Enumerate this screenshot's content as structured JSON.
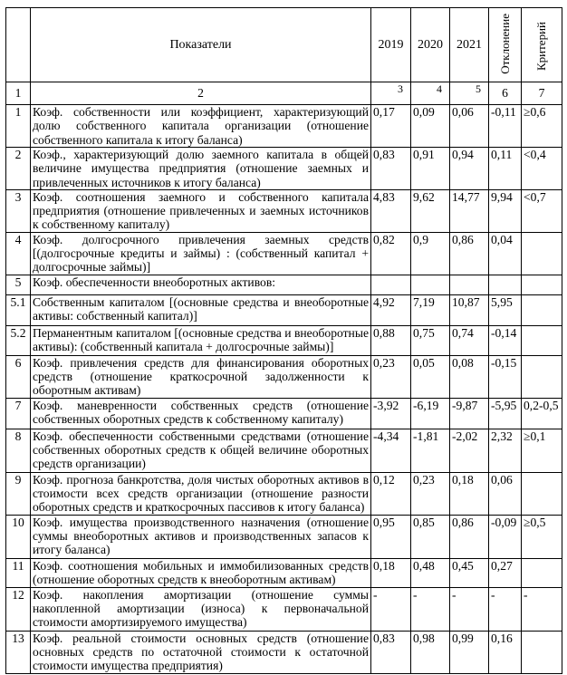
{
  "header": {
    "indicator": "Показатели",
    "y2019": "2019",
    "y2020": "2020",
    "y2021": "2021",
    "deviation": "Отклонение",
    "criterion": "Критерий"
  },
  "column_numbers": [
    "1",
    "2",
    "3",
    "4",
    "5",
    "6",
    "7"
  ],
  "rows": [
    {
      "n": "1",
      "name": "Коэф. собственности или коэффициент, характеризующий долю собственного капитала организации (отношение собственного капитала к итогу баланса)",
      "v2019": "0,17",
      "v2020": "0,09",
      "v2021": "0,06",
      "dev": "-0,11",
      "crit": "≥0,6"
    },
    {
      "n": "2",
      "name": "Коэф., характеризующий долю заемного капитала в общей величине имущества предприятия (отношение заемных и привлеченных источников к итогу баланса)",
      "v2019": "0,83",
      "v2020": "0,91",
      "v2021": "0,94",
      "dev": "0,11",
      "crit": "<0,4"
    },
    {
      "n": "3",
      "name": "Коэф. соотношения заемного и собственного капитала предприятия (отношение привлеченных и заемных источников к собственному капиталу)",
      "v2019": "4,83",
      "v2020": "9,62",
      "v2021": "14,77",
      "dev": "9,94",
      "crit": "<0,7"
    },
    {
      "n": "4",
      "name": "Коэф. долгосрочного привлечения заемных средств [(долгосрочные кредиты и займы) : (собственный капитал + долгосрочные займы)]",
      "v2019": "0,82",
      "v2020": "0,9",
      "v2021": "0,86",
      "dev": "0,04",
      "crit": ""
    },
    {
      "n": "5",
      "name": "Коэф. обеспеченности внеоборотных активов:",
      "v2019": "",
      "v2020": "",
      "v2021": "",
      "dev": "",
      "crit": ""
    },
    {
      "n": "5.1",
      "name": "Собственным капиталом [(основные средства и внеоборотные активы: собственный капитал)]",
      "v2019": "4,92",
      "v2020": "7,19",
      "v2021": "10,87",
      "dev": "5,95",
      "crit": ""
    },
    {
      "n": "5.2",
      "name": "Перманентным капиталом [(основные средства и внеоборотные активы): (собственный капитала + долгосрочные займы)]",
      "v2019": "0,88",
      "v2020": "0,75",
      "v2021": "0,74",
      "dev": "-0,14",
      "crit": ""
    },
    {
      "n": "6",
      "name": "Коэф. привлечения средств для финансирования оборотных средств (отношение краткосрочной задолженности к оборотным активам)",
      "v2019": "0,23",
      "v2020": "0,05",
      "v2021": "0,08",
      "dev": "-0,15",
      "crit": ""
    },
    {
      "n": "7",
      "name": "Коэф. маневренности собственных средств (отношение собственных оборотных средств к собственному капиталу)",
      "v2019": "-3,92",
      "v2020": "-6,19",
      "v2021": "-9,87",
      "dev": "-5,95",
      "crit": "0,2-0,5"
    },
    {
      "n": "8",
      "name": "Коэф. обеспеченности собственными средствами (отношение собственных оборотных средств к общей величине оборотных средств организации)",
      "v2019": "-4,34",
      "v2020": "-1,81",
      "v2021": "-2,02",
      "dev": "2,32",
      "crit": "≥0,1"
    },
    {
      "n": "9",
      "name": "Коэф. прогноза банкротства, доля чистых оборотных активов в стоимости всех средств организации (отношение разности оборотных средств и краткосрочных пассивов к итогу баланса)",
      "v2019": "0,12",
      "v2020": "0,23",
      "v2021": "0,18",
      "dev": "0,06",
      "crit": ""
    },
    {
      "n": "10",
      "name": "Коэф. имущества производственного назначения (отношение суммы внеоборотных активов и производственных запасов к итогу баланса)",
      "v2019": "0,95",
      "v2020": "0,85",
      "v2021": "0,86",
      "dev": "-0,09",
      "crit": "≥0,5"
    },
    {
      "n": "11",
      "name": "Коэф. соотношения мобильных и иммобилизованных средств (отношение оборотных средств к внеоборотным активам)",
      "v2019": "0,18",
      "v2020": "0,48",
      "v2021": "0,45",
      "dev": "0,27",
      "crit": ""
    },
    {
      "n": "12",
      "name": "Коэф. накопления амортизации (отношение суммы накопленной амортизации (износа) к первоначальной стоимости амортизируемого имущества)",
      "v2019": "-",
      "v2020": "-",
      "v2021": "-",
      "dev": "-",
      "crit": "-"
    },
    {
      "n": "13",
      "name": "Коэф. реальной стоимости основных средств (отношение основных средств по остаточной стоимости к остаточной стоимости имущества предприятия)",
      "v2019": "0,83",
      "v2020": "0,98",
      "v2021": "0,99",
      "dev": "0,16",
      "crit": ""
    }
  ]
}
